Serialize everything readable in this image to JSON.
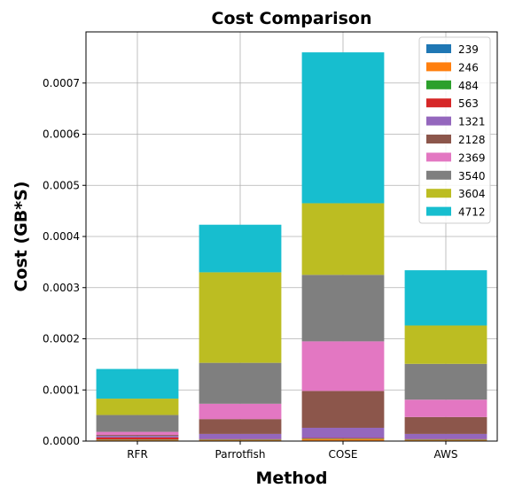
{
  "chart_data": {
    "type": "bar",
    "stacked": true,
    "title": "Cost Comparison",
    "xlabel": "Method",
    "ylabel": "Cost (GB*S)",
    "categories": [
      "RFR",
      "Parrotfish",
      "COSE",
      "AWS"
    ],
    "ylim": [
      0,
      0.0008
    ],
    "yticks": [
      0,
      0.0001,
      0.0002,
      0.0003,
      0.0004,
      0.0005,
      0.0006,
      0.0007
    ],
    "ytick_labels": [
      "0.0000",
      "0.0001",
      "0.0002",
      "0.0003",
      "0.0004",
      "0.0005",
      "0.0006",
      "0.0007"
    ],
    "grid": true,
    "legend_position": "top-right",
    "series": [
      {
        "name": "239",
        "color": "#1f77b4",
        "values": [
          1e-06,
          1e-06,
          1e-06,
          1e-06
        ]
      },
      {
        "name": "246",
        "color": "#ff7f0e",
        "values": [
          1e-06,
          1e-06,
          3e-06,
          1e-06
        ]
      },
      {
        "name": "484",
        "color": "#2ca02c",
        "values": [
          1e-06,
          1e-06,
          1e-06,
          1e-06
        ]
      },
      {
        "name": "563",
        "color": "#d62728",
        "values": [
          4e-06,
          1e-06,
          1e-06,
          1e-06
        ]
      },
      {
        "name": "1321",
        "color": "#9467bd",
        "values": [
          3e-06,
          1e-05,
          2e-05,
          1e-05
        ]
      },
      {
        "name": "2128",
        "color": "#8c564b",
        "values": [
          2e-06,
          2.9e-05,
          7.2e-05,
          3.3e-05
        ]
      },
      {
        "name": "2369",
        "color": "#e377c2",
        "values": [
          6e-06,
          3e-05,
          9.7e-05,
          3.4e-05
        ]
      },
      {
        "name": "3540",
        "color": "#7f7f7f",
        "values": [
          3.3e-05,
          8e-05,
          0.00013,
          7e-05
        ]
      },
      {
        "name": "3604",
        "color": "#bcbd22",
        "values": [
          3.2e-05,
          0.000177,
          0.00014,
          7.5e-05
        ]
      },
      {
        "name": "4712",
        "color": "#17becf",
        "values": [
          5.8e-05,
          9.3e-05,
          0.000295,
          0.000108
        ]
      }
    ]
  }
}
